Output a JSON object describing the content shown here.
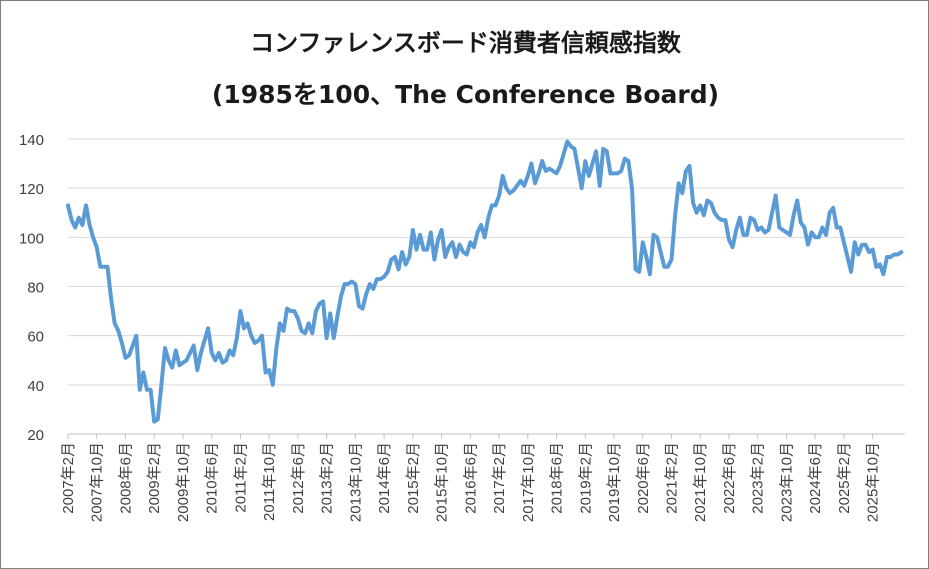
{
  "title_line1": "コンファレンスボード消費者信頼感指数",
  "title_line2": "(1985を100、The Conference Board)",
  "chart_data": {
    "type": "line",
    "title": "コンファレンスボード消費者信頼感指数 (1985を100、The Conference Board)",
    "ylim": [
      20,
      140
    ],
    "yticks": [
      20,
      40,
      60,
      80,
      100,
      120,
      140
    ],
    "grid": "horizontal",
    "xticklabels": [
      "2007年2月",
      "2007年10月",
      "2008年6月",
      "2009年2月",
      "2009年10月",
      "2010年6月",
      "2011年2月",
      "2011年10月",
      "2012年6月",
      "2013年2月",
      "2013年10月",
      "2014年6月",
      "2015年2月",
      "2015年10月",
      "2016年6月",
      "2017年2月",
      "2017年10月",
      "2018年6月",
      "2019年2月",
      "2019年10月",
      "2020年6月",
      "2021年2月",
      "2021年10月",
      "2022年6月",
      "2023年2月",
      "2023年10月",
      "2024年6月",
      "2025年2月",
      "2025年10月"
    ],
    "series": [
      {
        "color": "#5b9bd5",
        "start": "2007年2月",
        "values": [
          113,
          107,
          104,
          108,
          105,
          113,
          105,
          100,
          96,
          88,
          88,
          88,
          75,
          65,
          62,
          57,
          51,
          52,
          56,
          60,
          38,
          45,
          38,
          38,
          25,
          26,
          40,
          55,
          50,
          47,
          54,
          48,
          49,
          50,
          53,
          56,
          46,
          53,
          58,
          63,
          53,
          50,
          53,
          49,
          50,
          54,
          52,
          59,
          70,
          63,
          65,
          60,
          57,
          58,
          60,
          45,
          46,
          40,
          55,
          65,
          62,
          71,
          70,
          70,
          67,
          62,
          61,
          65,
          61,
          70,
          73,
          74,
          59,
          69,
          59,
          68,
          76,
          81,
          81,
          82,
          81,
          72,
          71,
          77,
          81,
          79,
          83,
          83,
          84,
          86,
          91,
          92,
          87,
          94,
          89,
          92,
          103,
          95,
          101,
          95,
          95,
          102,
          91,
          99,
          103,
          92,
          96,
          98,
          92,
          97,
          94,
          93,
          98,
          96,
          102,
          105,
          100,
          108,
          113,
          113,
          117,
          125,
          120,
          118,
          119,
          121,
          123,
          121,
          125,
          130,
          122,
          126,
          131,
          127,
          128,
          127,
          126,
          129,
          134,
          139,
          137,
          136,
          128,
          120,
          131,
          125,
          130,
          135,
          121,
          136,
          135,
          126,
          126,
          126,
          127,
          132,
          131,
          120,
          87,
          86,
          98,
          92,
          85,
          101,
          100,
          94,
          88,
          88,
          91,
          109,
          122,
          118,
          127,
          129,
          114,
          110,
          113,
          109,
          115,
          114,
          110,
          108,
          107,
          107,
          99,
          96,
          103,
          108,
          101,
          101,
          108,
          107,
          103,
          104,
          102,
          103,
          110,
          117,
          104,
          103,
          102,
          101,
          109,
          115,
          106,
          104,
          97,
          102,
          100,
          100,
          104,
          101,
          110,
          112,
          104,
          104,
          98,
          92,
          86,
          98,
          93,
          97,
          97,
          94,
          95,
          88,
          89,
          85,
          92,
          92,
          93,
          93,
          94
        ]
      }
    ]
  }
}
